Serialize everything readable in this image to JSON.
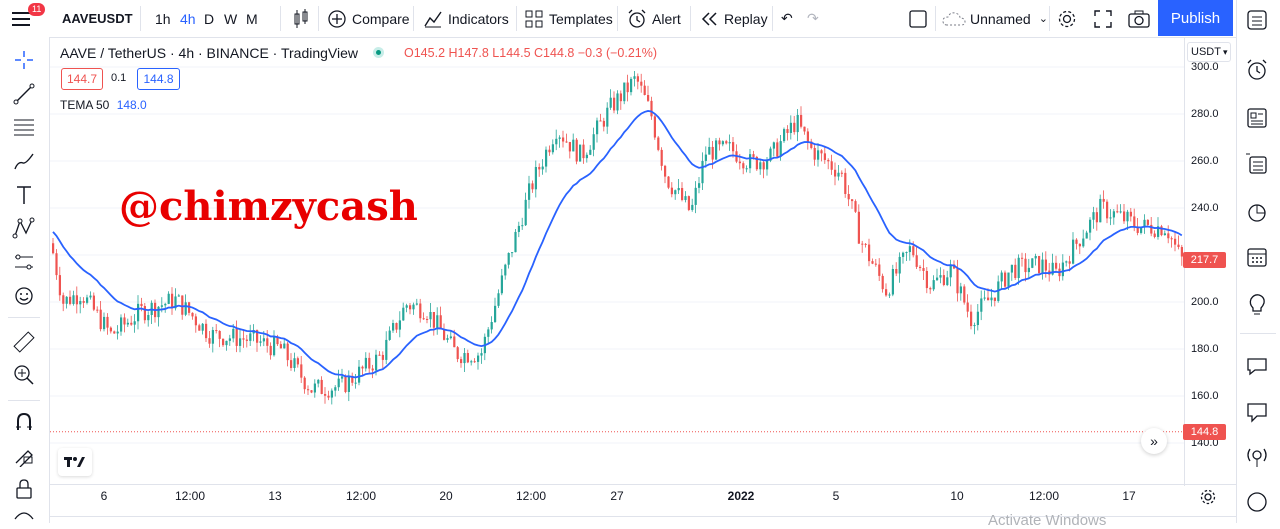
{
  "topbar": {
    "notif_count": "11",
    "symbol": "AAVEUSDT",
    "intervals": [
      "1h",
      "4h",
      "D",
      "W",
      "M"
    ],
    "active_interval": "4h",
    "compare": "Compare",
    "indicators": "Indicators",
    "templates": "Templates",
    "alert": "Alert",
    "replay": "Replay",
    "layout_name": "Unnamed",
    "publish": "Publish"
  },
  "legend": {
    "title": "AAVE / TetherUS · 4h · BINANCE · TradingView",
    "open_label": "O",
    "open": "145.2",
    "high_label": "H",
    "high": "147.8",
    "low_label": "L",
    "low": "144.5",
    "close_label": "C",
    "close": "144.8",
    "change": "−0.3 (−0.21%)",
    "bid": "144.7",
    "spread": "0.1",
    "ask": "144.8",
    "indicator_name": "TEMA 50",
    "indicator_value": "148.0"
  },
  "watermark_text": "@chimzycash",
  "axis": {
    "currency": "USDT",
    "y_ticks": [
      "300.0",
      "280.0",
      "260.0",
      "240.0",
      "200.0",
      "180.0",
      "160.0",
      "140.0"
    ],
    "x_ticks": [
      "6",
      "12:00",
      "13",
      "12:00",
      "20",
      "12:00",
      "27",
      "2022",
      "5",
      "10",
      "12:00",
      "17"
    ],
    "last_price_tag": "217.7",
    "line_price_tag": "144.8"
  },
  "bottom": {
    "activate_windows": "Activate Windows"
  },
  "colors": {
    "up": "#26a69a",
    "down": "#ef5350",
    "tema": "#2962ff",
    "publish": "#2962ff",
    "watermark": "#e80000"
  },
  "icons": {
    "left": [
      "crosshair-icon",
      "trend-line-icon",
      "fib-retracement-icon",
      "brush-icon",
      "text-icon",
      "pattern-icon",
      "forecast-icon",
      "emoji-icon",
      "ruler-icon",
      "zoom-in-icon",
      "magnet-icon",
      "lock-drawing-icon",
      "lock-icon"
    ],
    "right": [
      "watchlist-icon",
      "alarm-clock-icon",
      "news-icon",
      "data-window-icon",
      "hotlist-icon",
      "calendar-icon",
      "ideas-icon",
      "chat-icon",
      "chat-alt-icon",
      "signals-icon"
    ]
  }
}
